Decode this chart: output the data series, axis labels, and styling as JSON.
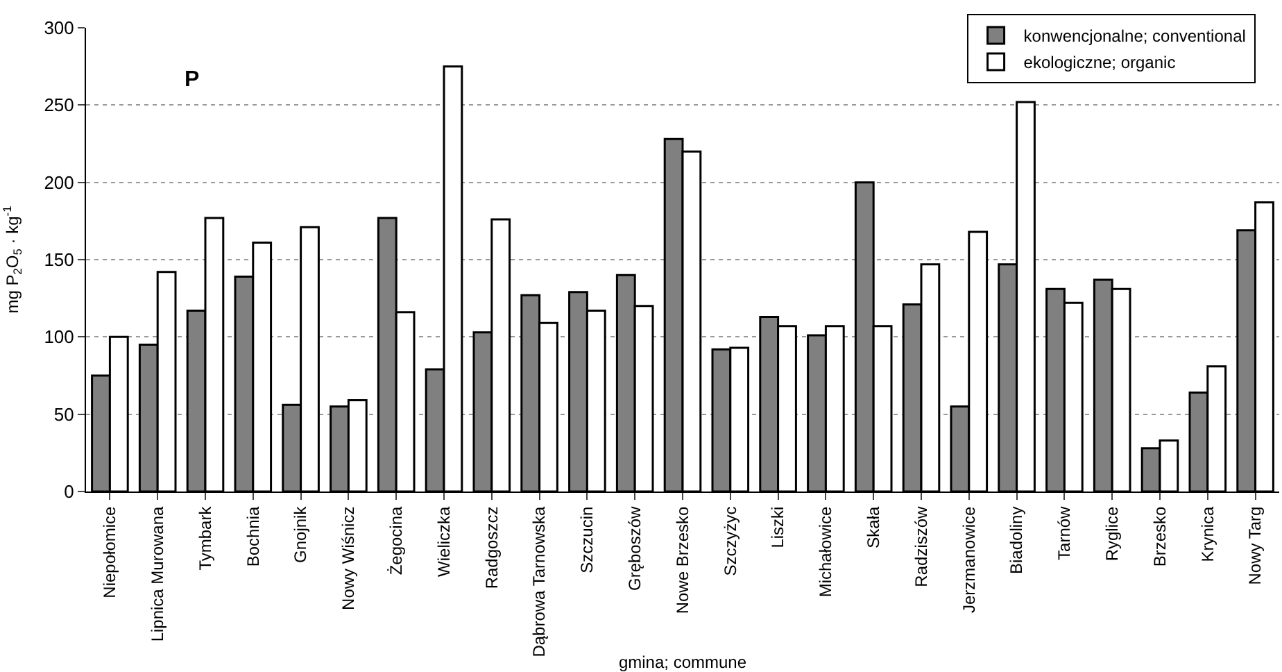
{
  "chart_data": {
    "type": "bar",
    "ylabel": "mg P$_{2}$O$_{5}$ · kg$^{-1}$",
    "xlabel": "gmina; commune",
    "annotations": [
      "P"
    ],
    "categories": [
      "Niepołomice",
      "Lipnica Murowana",
      "Tymbark",
      "Bochnia",
      "Gnojnik",
      "Nowy Wiśnicz",
      "Żegocina",
      "Wieliczka",
      "Radgoszcz",
      "Dąbrowa Tarnowska",
      "Szczucin",
      "Gręboszów",
      "Nowe Brzesko",
      "Szczyżyc",
      "Liszki",
      "Michałowice",
      "Skała",
      "Radziszów",
      "Jerzmanowice",
      "Biadoliny",
      "Tarnów",
      "Ryglice",
      "Brzesko",
      "Krynica",
      "Nowy Targ"
    ],
    "series": [
      {
        "name": "konwencjonalne; conventional",
        "color": "#808080",
        "values": [
          75,
          95,
          117,
          139,
          56,
          55,
          177,
          79,
          103,
          127,
          129,
          140,
          228,
          92,
          113,
          101,
          200,
          121,
          55,
          147,
          131,
          137,
          28,
          64,
          169
        ]
      },
      {
        "name": "ekologiczne; organic",
        "color": "#ffffff",
        "values": [
          100,
          142,
          177,
          161,
          171,
          59,
          116,
          275,
          176,
          109,
          117,
          120,
          220,
          93,
          107,
          107,
          107,
          147,
          168,
          252,
          122,
          131,
          33,
          81,
          187
        ]
      }
    ],
    "ylim": [
      0,
      300
    ],
    "yticks": [
      0,
      50,
      100,
      150,
      200,
      250,
      300
    ],
    "grid": "y",
    "legend": "top right"
  }
}
